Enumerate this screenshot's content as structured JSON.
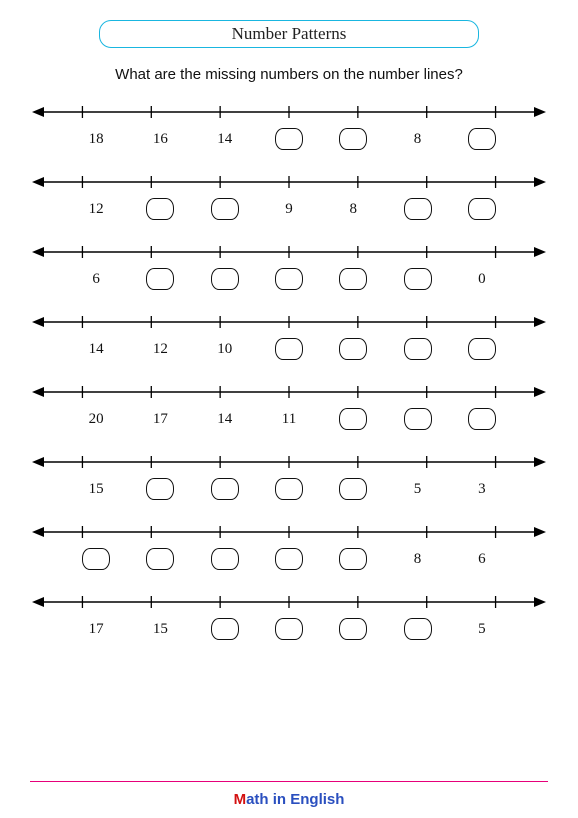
{
  "title": "Number Patterns",
  "question": "What are the missing numbers on the number lines?",
  "ticks_per_line": 7,
  "colors": {
    "title_border": "#19b6e0",
    "line": "#000000",
    "footer_rule": "#e6007a",
    "footer_text": "#2a4fbf",
    "footer_accent": "#d31111"
  },
  "lines": [
    {
      "cells": [
        "18",
        "16",
        "14",
        null,
        null,
        "8",
        null
      ]
    },
    {
      "cells": [
        "12",
        null,
        null,
        "9",
        "8",
        null,
        null
      ]
    },
    {
      "cells": [
        "6",
        null,
        null,
        null,
        null,
        null,
        "0"
      ]
    },
    {
      "cells": [
        "14",
        "12",
        "10",
        null,
        null,
        null,
        null
      ]
    },
    {
      "cells": [
        "20",
        "17",
        "14",
        "11",
        null,
        null,
        null
      ]
    },
    {
      "cells": [
        "15",
        null,
        null,
        null,
        null,
        "5",
        "3"
      ]
    },
    {
      "cells": [
        null,
        null,
        null,
        null,
        null,
        "8",
        "6"
      ]
    },
    {
      "cells": [
        "17",
        "15",
        null,
        null,
        null,
        null,
        "5"
      ]
    }
  ],
  "footer": {
    "accent": "M",
    "rest": "ath in English"
  }
}
